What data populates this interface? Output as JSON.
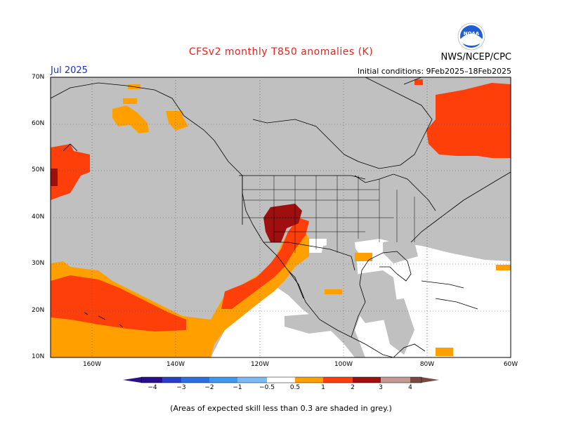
{
  "header": {
    "title": "CFSv2 monthly T850 anomalies (K)",
    "org": "NWS/NCEP/CPC",
    "month": "Jul 2025",
    "initial_conditions": "Initial conditions: 9Feb2025–18Feb2025",
    "logo_text": "NOAA"
  },
  "axes": {
    "lat_ticks": [
      "70N",
      "60N",
      "50N",
      "40N",
      "30N",
      "20N",
      "10N"
    ],
    "lon_ticks": [
      "160W",
      "140W",
      "120W",
      "100W",
      "80W",
      "60W"
    ]
  },
  "colorbar": {
    "ticks": [
      "−4",
      "−3",
      "−2",
      "−1",
      "−0.5",
      "0.5",
      "1",
      "2",
      "3",
      "4"
    ],
    "colors": [
      "#2a0e8a",
      "#2a3fc8",
      "#2c6fe0",
      "#3f98f0",
      "#7cbaf5",
      "#ffffff",
      "#ffa000",
      "#ff3f0a",
      "#a00f0f",
      "#c49a90",
      "#7a4a40"
    ]
  },
  "note": "(Areas of expected skill less than 0.3 are shaded in grey.)",
  "colors": {
    "land_grey": "#c0c0c0",
    "ocean_white": "#ffffff",
    "anomaly_05_1": "#ffa000",
    "anomaly_1_2": "#ff3f0a",
    "anomaly_2_3": "#a00f0f"
  }
}
